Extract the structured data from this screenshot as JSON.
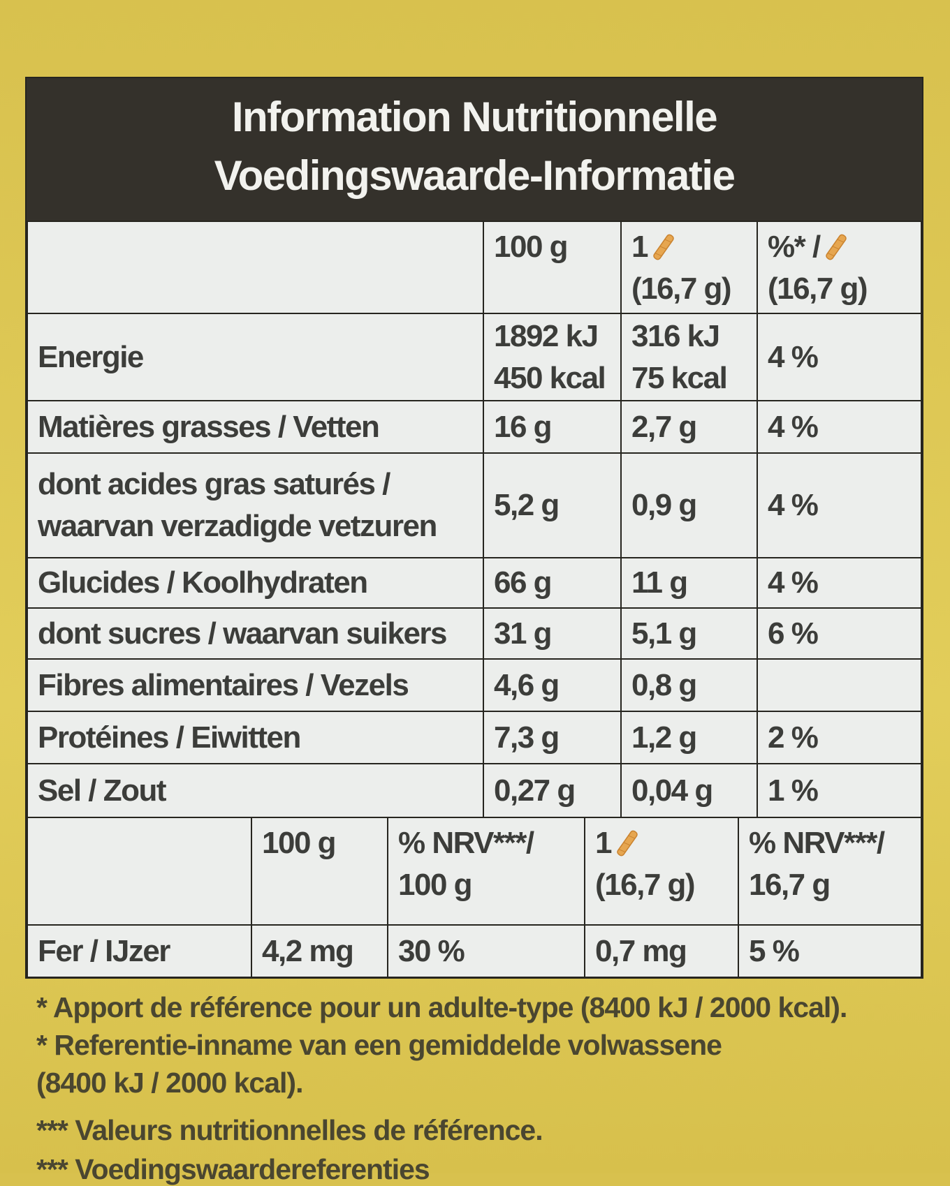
{
  "header": {
    "title_fr": "Information Nutritionnelle",
    "title_nl": "Voedingswaarde-Informatie"
  },
  "table": {
    "header": [
      null,
      [
        "100 g"
      ],
      [
        "1",
        "(16,7 g)"
      ],
      [
        "%* /",
        "(16,7 g)"
      ]
    ],
    "rows": [
      [
        [
          "Energie"
        ],
        [
          "1892 kJ",
          "450 kcal"
        ],
        [
          "316 kJ",
          "75 kcal"
        ],
        [
          "4 %"
        ]
      ],
      [
        [
          "Matières grasses / Vetten"
        ],
        [
          "16 g"
        ],
        [
          "2,7 g"
        ],
        [
          "4 %"
        ]
      ],
      [
        [
          "dont acides gras saturés /",
          "waarvan verzadigde vetzuren"
        ],
        [
          "5,2 g"
        ],
        [
          "0,9 g"
        ],
        [
          "4 %"
        ]
      ],
      [
        [
          "Glucides / Koolhydraten"
        ],
        [
          "66 g"
        ],
        [
          "11 g"
        ],
        [
          "4 %"
        ]
      ],
      [
        [
          "dont sucres / waarvan suikers"
        ],
        [
          "31 g"
        ],
        [
          "5,1 g"
        ],
        [
          "6 %"
        ]
      ],
      [
        [
          "Fibres alimentaires / Vezels"
        ],
        [
          "4,6 g"
        ],
        [
          "0,8 g"
        ],
        null
      ],
      [
        [
          "Protéines / Eiwitten"
        ],
        [
          "7,3 g"
        ],
        [
          "1,2 g"
        ],
        [
          "2 %"
        ]
      ],
      [
        [
          "Sel / Zout"
        ],
        [
          "0,27 g"
        ],
        [
          "0,04 g"
        ],
        [
          "1 %"
        ]
      ]
    ]
  },
  "mineral_table": {
    "header": [
      null,
      [
        "100 g"
      ],
      [
        "% NRV***/",
        "100 g"
      ],
      [
        "1",
        "(16,7 g)"
      ],
      [
        "% NRV***/",
        "16,7 g"
      ]
    ],
    "rows": [
      [
        [
          "Fer / IJzer"
        ],
        [
          "4,2 mg"
        ],
        [
          "30 %"
        ],
        [
          "0,7 mg"
        ],
        [
          "5 %"
        ]
      ]
    ]
  },
  "footnotes": [
    "* Apport de référence pour un adulte-type (8400 kJ / 2000 kcal).",
    "* Referentie-inname van een gemiddelde volwassene",
    "(8400 kJ / 2000 kcal).",
    "*** Valeurs nutritionnelles de référence.",
    "*** Voedingswaardereferenties"
  ]
}
